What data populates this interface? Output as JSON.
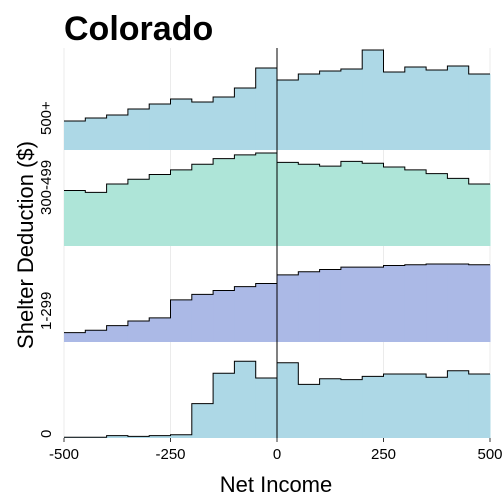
{
  "chart_data": {
    "type": "area",
    "title": "Colorado",
    "xlabel": "Net Income",
    "ylabel": "Shelter Deduction ($)",
    "xlim": [
      -500,
      500
    ],
    "x_ticks": [
      -500,
      -250,
      0,
      250,
      500
    ],
    "x_tick_labels": [
      "-500",
      "-250",
      "0",
      "250",
      "500"
    ],
    "bin_edges": [
      -500,
      -450,
      -400,
      -350,
      -300,
      -250,
      -200,
      -150,
      -100,
      -50,
      0,
      50,
      100,
      150,
      200,
      250,
      300,
      350,
      400,
      450,
      500
    ],
    "vline_x": 0,
    "panels": [
      {
        "name": "500+",
        "color": "#add8e6",
        "values": [
          0.29,
          0.32,
          0.35,
          0.41,
          0.46,
          0.51,
          0.48,
          0.53,
          0.62,
          0.82,
          0.7,
          0.76,
          0.79,
          0.81,
          1.0,
          0.78,
          0.83,
          0.8,
          0.84,
          0.76
        ]
      },
      {
        "name": "300-499",
        "color": "#aee5d8",
        "values": [
          0.59,
          0.57,
          0.66,
          0.71,
          0.76,
          0.81,
          0.87,
          0.93,
          0.97,
          0.99,
          0.89,
          0.87,
          0.85,
          0.9,
          0.88,
          0.84,
          0.81,
          0.77,
          0.72,
          0.66
        ]
      },
      {
        "name": "1-299",
        "color": "#abb9e6",
        "values": [
          0.12,
          0.15,
          0.21,
          0.27,
          0.31,
          0.54,
          0.61,
          0.66,
          0.71,
          0.75,
          0.86,
          0.9,
          0.93,
          0.96,
          0.96,
          0.98,
          0.99,
          1.0,
          1.0,
          0.99
        ]
      },
      {
        "name": "0",
        "color": "#add8e6",
        "values": [
          0.01,
          0.01,
          0.03,
          0.02,
          0.03,
          0.04,
          0.43,
          0.81,
          0.96,
          0.75,
          0.94,
          0.67,
          0.74,
          0.73,
          0.77,
          0.8,
          0.8,
          0.76,
          0.84,
          0.8
        ]
      }
    ]
  }
}
